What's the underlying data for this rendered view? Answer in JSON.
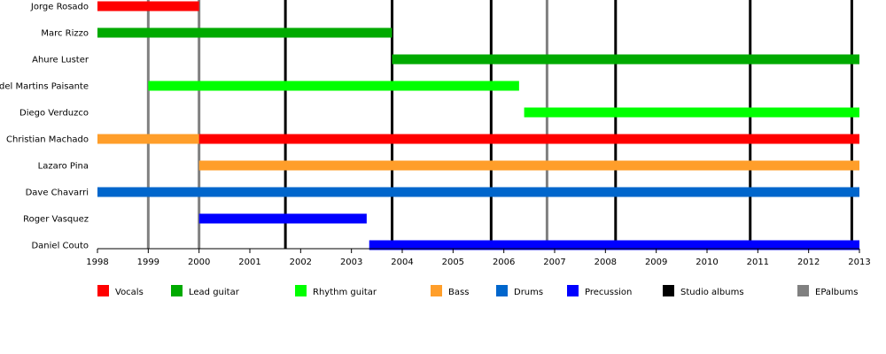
{
  "chart_data": {
    "type": "bar",
    "subtype": "timeline",
    "title": "",
    "xlabel": "",
    "ylabel": "",
    "xlim": [
      1998,
      2013
    ],
    "x_ticks": [
      "1998",
      "1999",
      "2000",
      "2001",
      "2002",
      "2003",
      "2004",
      "2005",
      "2006",
      "2007",
      "2008",
      "2009",
      "2010",
      "2011",
      "2012",
      "2013"
    ],
    "grid": false,
    "legend_position": "bottom",
    "roles": {
      "vocals": {
        "label": "Vocals",
        "color": "#ff0000"
      },
      "lead": {
        "label": "Lead guitar",
        "color": "#00aa00"
      },
      "rhythm": {
        "label": "Rhythm guitar",
        "color": "#00ff00"
      },
      "bass": {
        "label": "Bass",
        "color": "#ff9e2a"
      },
      "drums": {
        "label": "Drums",
        "color": "#0066cc"
      },
      "perc": {
        "label": "Precussion",
        "color": "#0000ff"
      },
      "studio": {
        "label": "Studio albums",
        "color": "#000000"
      },
      "ep": {
        "label": "EPalbums",
        "color": "#808080"
      }
    },
    "legend_order": [
      "vocals",
      "lead",
      "rhythm",
      "bass",
      "drums",
      "perc",
      "studio",
      "ep"
    ],
    "members": [
      {
        "name": "Jorge Rosado",
        "spans": [
          {
            "role": "vocals",
            "start": 1998.0,
            "end": 2000.0
          }
        ]
      },
      {
        "name": "Marc Rizzo",
        "spans": [
          {
            "role": "lead",
            "start": 1998.0,
            "end": 2003.8
          }
        ]
      },
      {
        "name": "Ahure Luster",
        "spans": [
          {
            "role": "lead",
            "start": 2003.8,
            "end": 2013.0
          }
        ]
      },
      {
        "name": "Ardel Martins Paisante",
        "spans": [
          {
            "role": "rhythm",
            "start": 1999.0,
            "end": 2006.3
          }
        ]
      },
      {
        "name": "Diego Verduzco",
        "spans": [
          {
            "role": "rhythm",
            "start": 2006.4,
            "end": 2013.0
          }
        ]
      },
      {
        "name": "Christian Machado",
        "spans": [
          {
            "role": "bass",
            "start": 1998.0,
            "end": 2000.0
          },
          {
            "role": "vocals",
            "start": 2000.0,
            "end": 2013.0
          }
        ]
      },
      {
        "name": "Lazaro Pina",
        "spans": [
          {
            "role": "bass",
            "start": 2000.0,
            "end": 2013.0
          }
        ]
      },
      {
        "name": "Dave Chavarri",
        "spans": [
          {
            "role": "drums",
            "start": 1998.0,
            "end": 2013.0
          }
        ]
      },
      {
        "name": "Roger Vasquez",
        "spans": [
          {
            "role": "perc",
            "start": 2000.0,
            "end": 2003.3
          }
        ]
      },
      {
        "name": "Daniel Couto",
        "spans": [
          {
            "role": "perc",
            "start": 2003.35,
            "end": 2013.0
          }
        ]
      }
    ],
    "album_releases": [
      {
        "kind": "ep",
        "year": 1999.0
      },
      {
        "kind": "ep",
        "year": 2000.0
      },
      {
        "kind": "studio",
        "year": 2001.7
      },
      {
        "kind": "studio",
        "year": 2003.8
      },
      {
        "kind": "studio",
        "year": 2005.75
      },
      {
        "kind": "ep",
        "year": 2006.85
      },
      {
        "kind": "studio",
        "year": 2008.2
      },
      {
        "kind": "studio",
        "year": 2010.85
      },
      {
        "kind": "studio",
        "year": 2012.85
      }
    ]
  }
}
